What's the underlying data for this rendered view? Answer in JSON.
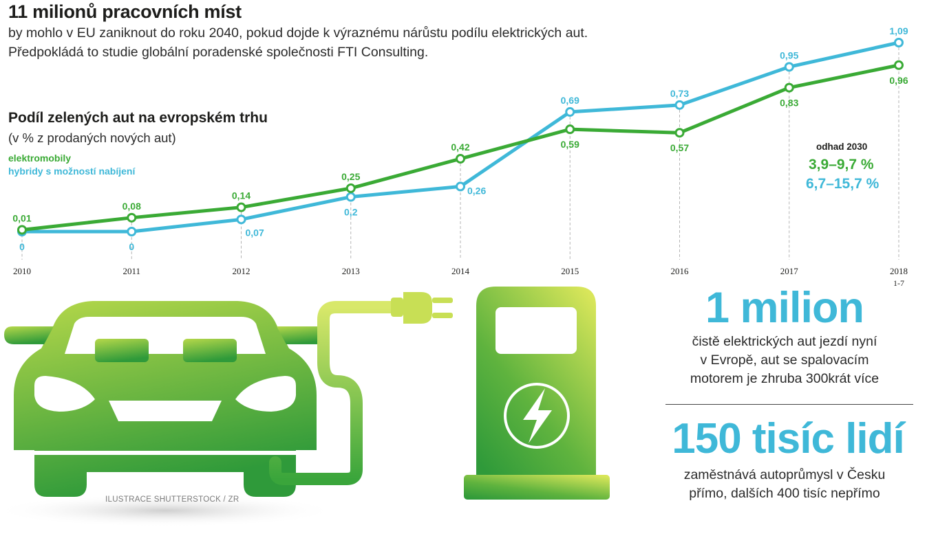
{
  "header": {
    "title": "11 milionů pracovních míst",
    "subtitle_line1": "by mohlo v EU zaniknout do roku 2040, pokud dojde k výraznému nárůstu podílu elektrických aut.",
    "subtitle_line2": "Předpokládá to studie globální poradenské společnosti FTI Consulting."
  },
  "estimate": {
    "title": "odhad 2030",
    "ev": "3,9–9,7 %",
    "phev": "6,7–15,7 %"
  },
  "stats": [
    {
      "value": "1 milion",
      "lines": [
        "čistě elektrických aut jezdí nyní",
        "v Evropě, aut se spalovacím",
        "motorem je zhruba 300krát více"
      ]
    },
    {
      "value": "150 tisíc lidí",
      "lines": [
        "zaměstnává autoprůmysl v Česku",
        "přímo, dalších 400 tisíc nepřímo"
      ]
    }
  ],
  "credit": "ILUSTRACE SHUTTERSTOCK / ZR",
  "colors": {
    "ev": "#3aaa35",
    "phev": "#3fb8d8",
    "grid": "#b3b3b3"
  },
  "icons": [
    "car-icon",
    "charging-cable-icon",
    "plug-icon",
    "charging-station-icon",
    "lightning-bolt-icon"
  ],
  "chart_data": {
    "type": "line",
    "title": "Podíl zelených aut na evropském trhu",
    "ylabel": "(v % z prodaných nových aut)",
    "xlabel": "",
    "categories": [
      "2010",
      "2011",
      "2012",
      "2013",
      "2014",
      "2015",
      "2016",
      "2017",
      "2018"
    ],
    "category_sublabels": [
      "",
      "",
      "",
      "",
      "",
      "",
      "",
      "",
      "1-7"
    ],
    "series": [
      {
        "name": "elektromobily",
        "color": "#3aaa35",
        "values": [
          0.01,
          0.08,
          0.14,
          0.25,
          0.42,
          0.59,
          0.57,
          0.83,
          0.96
        ],
        "labels": [
          "0,01",
          "0,08",
          "0,14",
          "0,25",
          "0,42",
          "0,59",
          "0,57",
          "0,83",
          "0,96"
        ]
      },
      {
        "name": "hybridy s možností nabíjení",
        "color": "#3fb8d8",
        "values": [
          0,
          0,
          0.07,
          0.2,
          0.26,
          0.69,
          0.73,
          0.95,
          1.09
        ],
        "labels": [
          "0",
          "0",
          "0,07",
          "0,2",
          "0,26",
          "0,69",
          "0,73",
          "0,95",
          "1,09"
        ]
      }
    ],
    "ylim": [
      0,
      1.2
    ],
    "grid": "vertical dashed lines",
    "legend": "top-left"
  }
}
